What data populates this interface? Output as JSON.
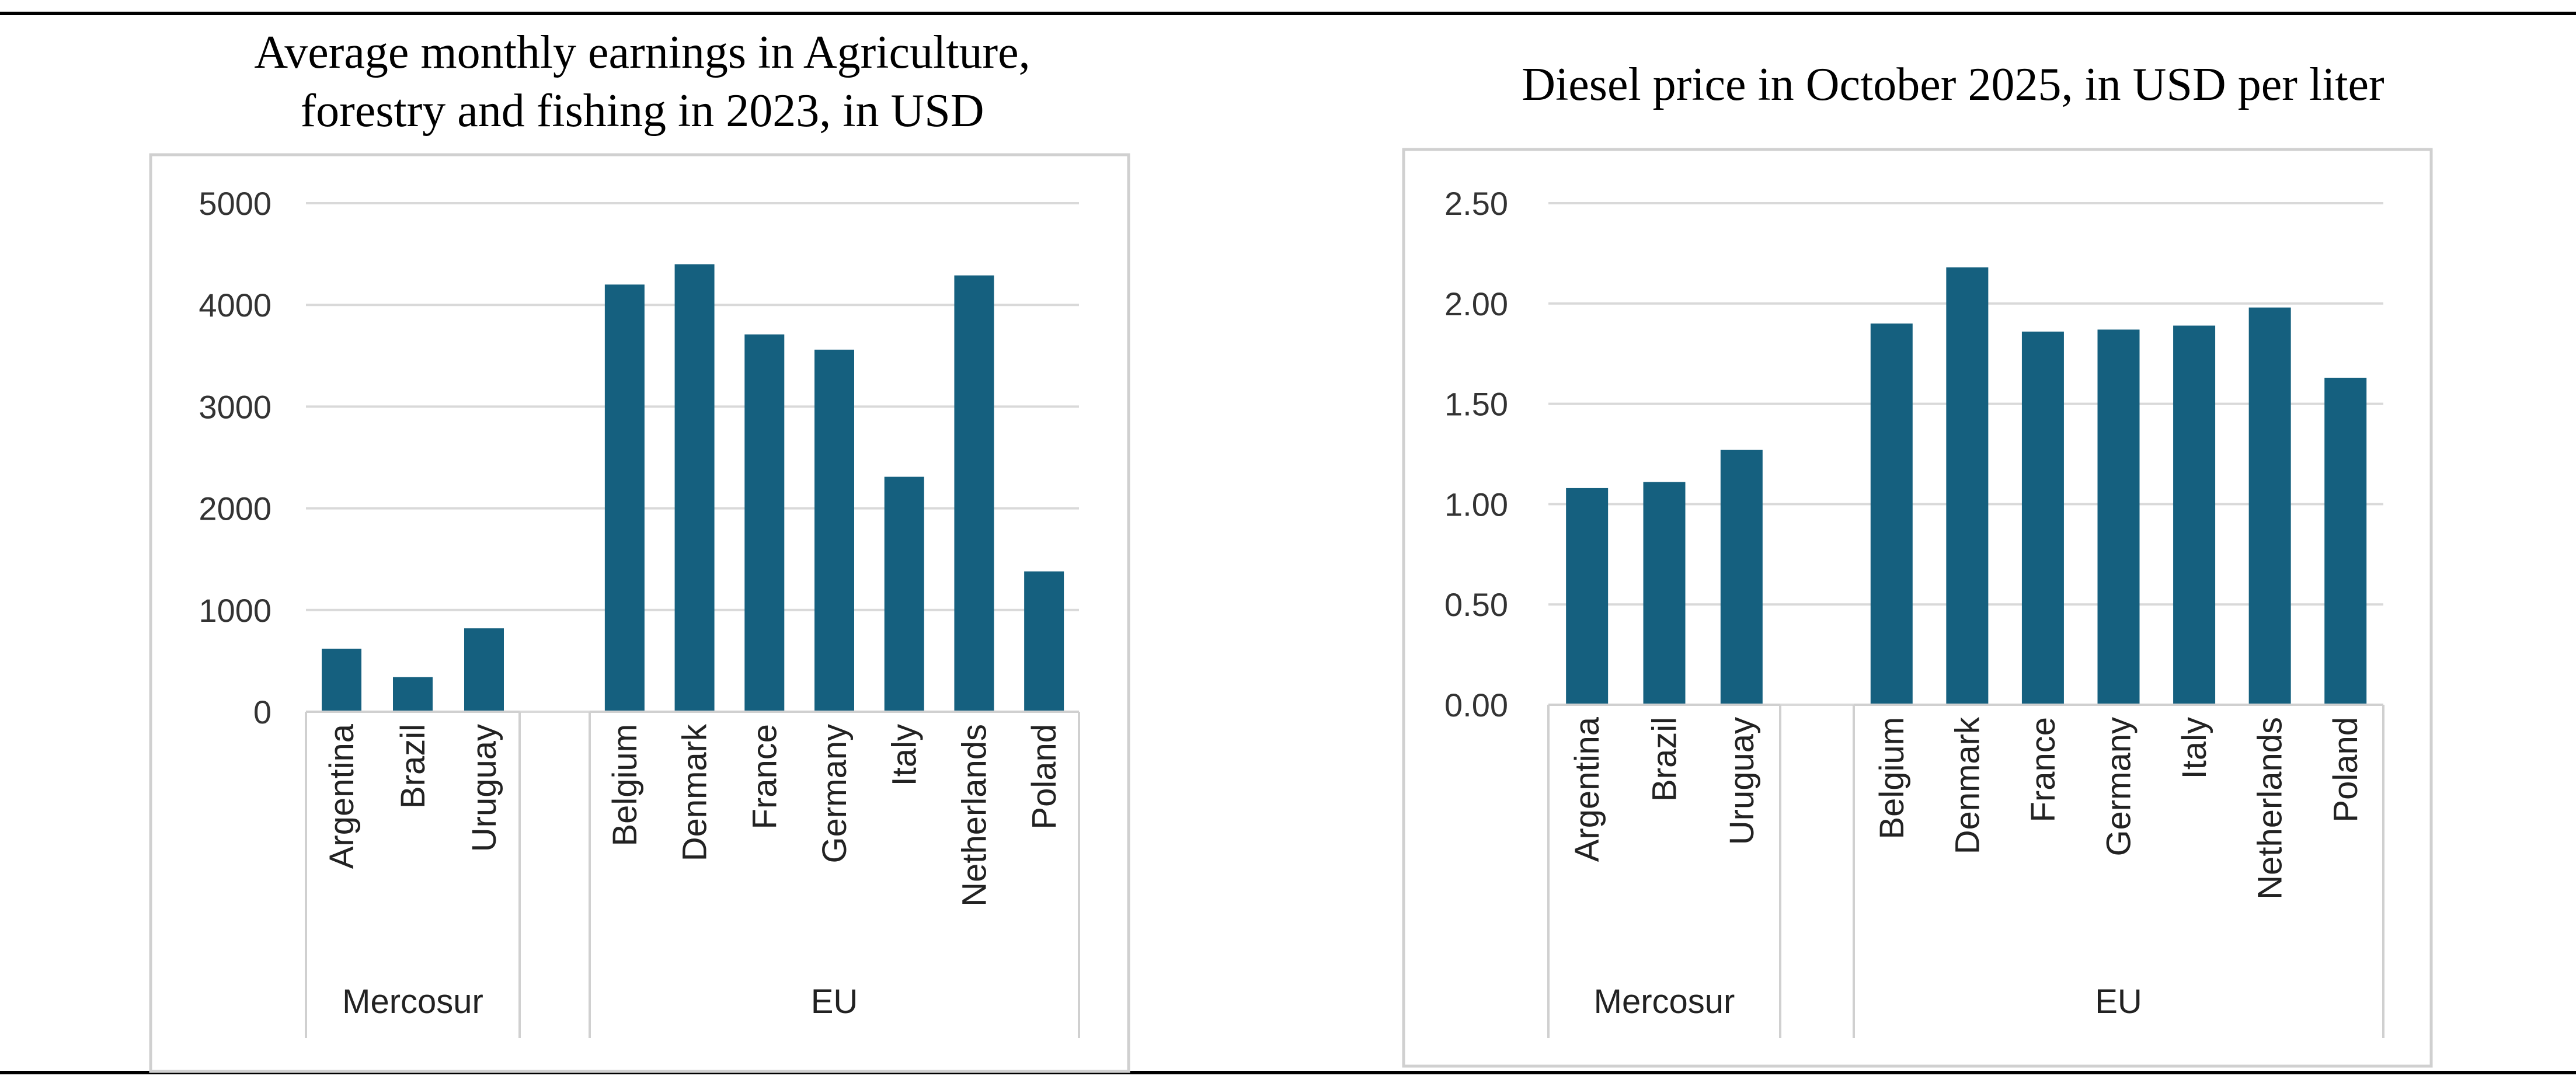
{
  "colors": {
    "bar": "#15607f",
    "grid": "#d9d9d9",
    "frame": "#d0d0d0"
  },
  "chart_data": [
    {
      "type": "bar",
      "title_lines": [
        "Average monthly earnings in Agriculture,",
        "forestry and fishing in 2023, in USD"
      ],
      "categories": [
        "Argentina",
        "Brazil",
        "Uruguay",
        "Belgium",
        "Denmark",
        "France",
        "Germany",
        "Italy",
        "Netherlands",
        "Poland"
      ],
      "groups": [
        {
          "name": "Mercosur",
          "members": [
            "Argentina",
            "Brazil",
            "Uruguay"
          ]
        },
        {
          "name": "EU",
          "members": [
            "Belgium",
            "Denmark",
            "France",
            "Germany",
            "Italy",
            "Netherlands",
            "Poland"
          ]
        }
      ],
      "values": [
        620,
        340,
        820,
        4200,
        4400,
        3710,
        3560,
        2310,
        4290,
        1380
      ],
      "ylim": [
        0,
        5000
      ],
      "yticks": [
        "0",
        "1000",
        "2000",
        "3000",
        "4000",
        "5000"
      ],
      "ytick_values": [
        0,
        1000,
        2000,
        3000,
        4000,
        5000
      ],
      "xlabel": "",
      "ylabel": "",
      "grid": true
    },
    {
      "type": "bar",
      "title_lines": [
        "Diesel price in October 2025, in USD per liter"
      ],
      "categories": [
        "Argentina",
        "Brazil",
        "Uruguay",
        "Belgium",
        "Denmark",
        "France",
        "Germany",
        "Italy",
        "Netherlands",
        "Poland"
      ],
      "groups": [
        {
          "name": "Mercosur",
          "members": [
            "Argentina",
            "Brazil",
            "Uruguay"
          ]
        },
        {
          "name": "EU",
          "members": [
            "Belgium",
            "Denmark",
            "France",
            "Germany",
            "Italy",
            "Netherlands",
            "Poland"
          ]
        }
      ],
      "values": [
        1.08,
        1.11,
        1.27,
        1.9,
        2.18,
        1.86,
        1.87,
        1.89,
        1.98,
        1.63
      ],
      "ylim": [
        0,
        2.5
      ],
      "yticks": [
        "0.00",
        "0.50",
        "1.00",
        "1.50",
        "2.00",
        "2.50"
      ],
      "ytick_values": [
        0,
        0.5,
        1.0,
        1.5,
        2.0,
        2.5
      ],
      "xlabel": "",
      "ylabel": "",
      "grid": true
    }
  ]
}
